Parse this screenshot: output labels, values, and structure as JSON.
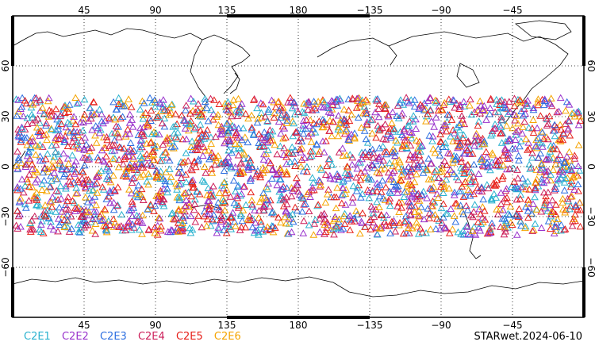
{
  "map": {
    "projection": "cylindrical-equidistant",
    "center_longitude": 180,
    "lat_range": [
      -90,
      90
    ],
    "x_tick_labels": [
      "45",
      "90",
      "135",
      "180",
      "−135",
      "−90",
      "−45"
    ],
    "y_tick_labels": [
      "60",
      "30",
      "0",
      "−30",
      "−60"
    ],
    "gridlines": "dotted",
    "marker_shape": "triangle-outline",
    "observation_lat_band": [
      -43,
      43
    ]
  },
  "legend": {
    "items": [
      {
        "label": "C2E1",
        "color": "#2ab2cf"
      },
      {
        "label": "C2E2",
        "color": "#9933cc"
      },
      {
        "label": "C2E3",
        "color": "#2d6fe0"
      },
      {
        "label": "C2E4",
        "color": "#cc1f5a"
      },
      {
        "label": "C2E5",
        "color": "#e6201a"
      },
      {
        "label": "C2E6",
        "color": "#f5a400"
      }
    ]
  },
  "footer": {
    "dataset_label": "STARwet.2024-06-10"
  }
}
